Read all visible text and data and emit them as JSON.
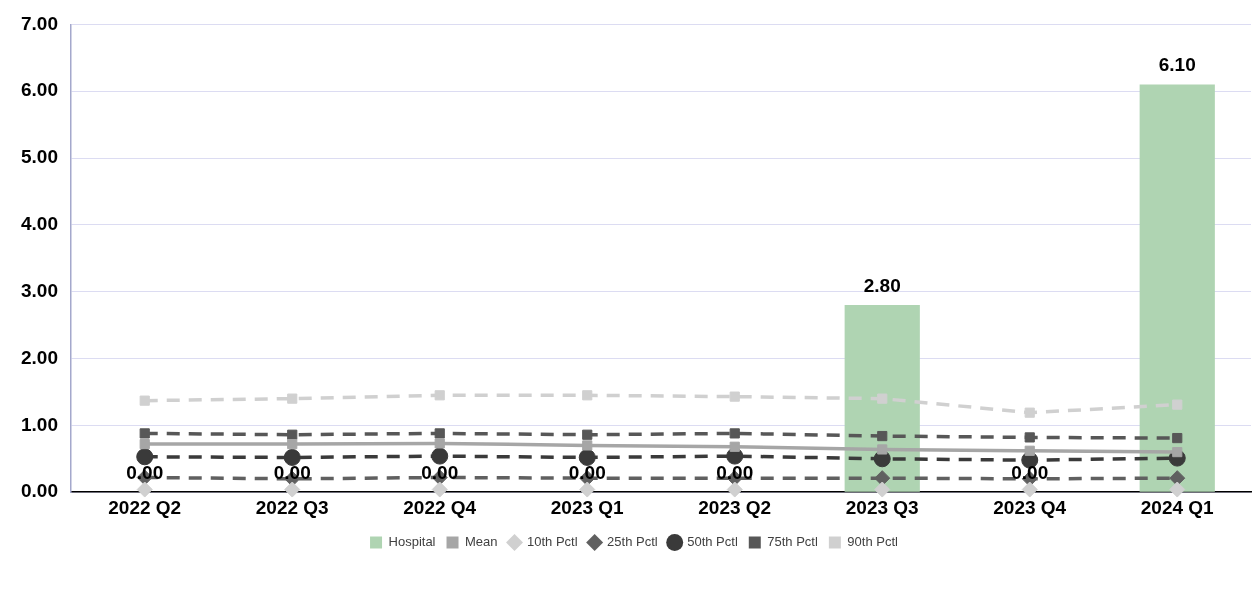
{
  "chart_data": {
    "type": "bar",
    "categories": [
      "2022 Q2",
      "2022 Q3",
      "2022 Q4",
      "2023 Q1",
      "2023 Q2",
      "2023 Q3",
      "2023 Q4",
      "2024 Q1"
    ],
    "series": [
      {
        "name": "Hospital",
        "color": "#afd4b2",
        "values": [
          0,
          0,
          0,
          0,
          0,
          2.8,
          0,
          6.1
        ],
        "value_labels": [
          "0.00",
          "0.00",
          "0.00",
          "0.00",
          "0.00",
          "2.80",
          "0.00",
          "6.10"
        ]
      },
      {
        "name": "Mean",
        "type": "line",
        "color": "#a6a6a6",
        "marker": "square",
        "line_style": "solid",
        "values": [
          0.72,
          0.72,
          0.73,
          0.7,
          0.68,
          0.64,
          0.62,
          0.6
        ]
      },
      {
        "name": "10th Pctl",
        "type": "scatter",
        "color": "#d0d0d0",
        "marker": "diamond",
        "x": [
          "2022 Q2",
          "2022 Q3",
          "2022 Q4",
          "2023 Q1",
          "2023 Q2",
          "2023 Q3",
          "2023 Q4",
          "2024 Q1"
        ],
        "values": [
          0.04,
          0.04,
          0.04,
          0.04,
          0.04,
          0.04,
          0.04,
          0.04
        ]
      },
      {
        "name": "25th Pctl",
        "type": "line",
        "color": "#606060",
        "marker": "diamond",
        "line_style": "dashed",
        "values": [
          0.22,
          0.2,
          0.22,
          0.21,
          0.21,
          0.21,
          0.2,
          0.21
        ]
      },
      {
        "name": "50th Pctl",
        "type": "line",
        "color": "#3a3a3a",
        "marker": "circle",
        "line_style": "dashed",
        "values": [
          0.53,
          0.52,
          0.54,
          0.52,
          0.54,
          0.5,
          0.48,
          0.51
        ]
      },
      {
        "name": "75th Pctl",
        "type": "line",
        "color": "#575757",
        "marker": "square",
        "line_style": "dashed",
        "values": [
          0.88,
          0.86,
          0.88,
          0.86,
          0.88,
          0.84,
          0.82,
          0.81
        ]
      },
      {
        "name": "90th Pctl",
        "type": "line",
        "color": "#d0d0d0",
        "marker": "square",
        "line_style": "dashed",
        "values": [
          1.37,
          1.4,
          1.45,
          1.45,
          1.43,
          1.4,
          1.19,
          1.31
        ]
      }
    ],
    "ylim": [
      0,
      7
    ],
    "yticks": [
      {
        "value": 0,
        "label": "0.00"
      },
      {
        "value": 1,
        "label": "1.00"
      },
      {
        "value": 2,
        "label": "2.00"
      },
      {
        "value": 3,
        "label": "3.00"
      },
      {
        "value": 4,
        "label": "4.00"
      },
      {
        "value": 5,
        "label": "5.00"
      },
      {
        "value": 6,
        "label": "6.00"
      },
      {
        "value": 7,
        "label": "7.00"
      }
    ],
    "grid": "y",
    "legend": "bottom"
  }
}
